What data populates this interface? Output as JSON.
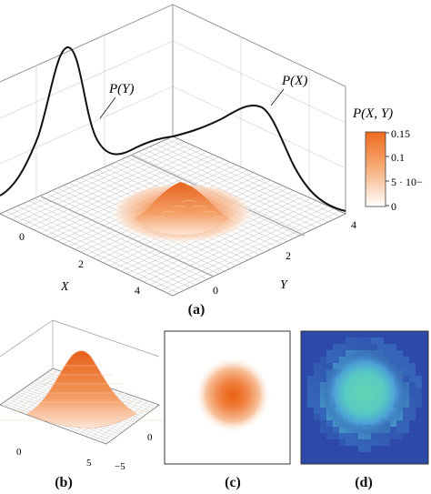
{
  "panel_a": {
    "caption": "(a)",
    "label_py": "P(Y)",
    "label_px": "P(X)",
    "colorbar": {
      "title": "P(X, Y)",
      "ticks": [
        "0.15",
        "0.1",
        "5 · 10−",
        "0"
      ],
      "high_color": "#ee6a1e",
      "low_color": "#ffffff"
    },
    "x_axis": {
      "label": "X",
      "ticks": [
        "0",
        "2",
        "4"
      ]
    },
    "y_axis": {
      "label": "Y",
      "ticks": [
        "0",
        "2",
        "4"
      ]
    }
  },
  "panel_b": {
    "caption": "(b)",
    "x_ticks": [
      "0",
      "5"
    ],
    "y_ticks": [
      "0",
      "−5"
    ]
  },
  "panel_c": {
    "caption": "(c)"
  },
  "panel_d": {
    "caption": "(d)",
    "bg_color": "#2d4aa8",
    "center_color": "#5fd6b6"
  }
}
